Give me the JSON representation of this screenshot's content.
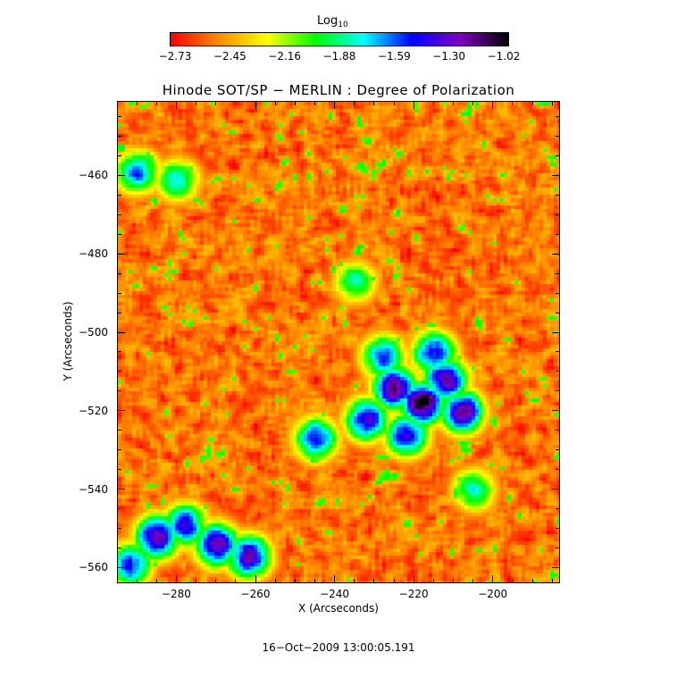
{
  "colorbar": {
    "title": "Log",
    "title_sub": "10",
    "ticks": [
      "−2.73",
      "−2.45",
      "−2.16",
      "−1.88",
      "−1.59",
      "−1.30",
      "−1.02"
    ],
    "colors": [
      "#ff0000",
      "#ff8c00",
      "#ffff00",
      "#00ff00",
      "#00ffff",
      "#0000ff",
      "#8000c0",
      "#000000"
    ]
  },
  "chart_data": {
    "type": "heatmap",
    "title": "Hinode SOT/SP − MERLIN : Degree of Polarization",
    "xlabel": "X (Arcseconds)",
    "ylabel": "Y (Arcseconds)",
    "xlim": [
      -295,
      -183
    ],
    "ylim": [
      -564,
      -441
    ],
    "xticks": [
      -280,
      -260,
      -240,
      -220,
      -200
    ],
    "xtick_labels": [
      "−280",
      "−260",
      "−240",
      "−220",
      "−200"
    ],
    "yticks": [
      -460,
      -480,
      -500,
      -520,
      -540,
      -560
    ],
    "ytick_labels": [
      "−460",
      "−480",
      "−500",
      "−520",
      "−540",
      "−560"
    ],
    "zlim": [
      -2.73,
      -1.02
    ],
    "z_scale": "log10",
    "features": [
      {
        "x": -218,
        "y": -518,
        "level": -1.05
      },
      {
        "x": -225,
        "y": -514,
        "level": -1.2
      },
      {
        "x": -212,
        "y": -512,
        "level": -1.25
      },
      {
        "x": -232,
        "y": -522,
        "level": -1.35
      },
      {
        "x": -208,
        "y": -520,
        "level": -1.25
      },
      {
        "x": -222,
        "y": -526,
        "level": -1.4
      },
      {
        "x": -245,
        "y": -527,
        "level": -1.5
      },
      {
        "x": -215,
        "y": -505,
        "level": -1.45
      },
      {
        "x": -228,
        "y": -506,
        "level": -1.55
      },
      {
        "x": -285,
        "y": -552,
        "level": -1.2
      },
      {
        "x": -270,
        "y": -554,
        "level": -1.25
      },
      {
        "x": -262,
        "y": -557,
        "level": -1.3
      },
      {
        "x": -278,
        "y": -549,
        "level": -1.45
      },
      {
        "x": -292,
        "y": -559,
        "level": -1.5
      },
      {
        "x": -290,
        "y": -459,
        "level": -1.6
      },
      {
        "x": -280,
        "y": -461,
        "level": -1.75
      },
      {
        "x": -235,
        "y": -487,
        "level": -1.85
      },
      {
        "x": -205,
        "y": -540,
        "level": -1.8
      }
    ]
  },
  "footer": {
    "timestamp": "16−Oct−2009 13:00:05.191"
  }
}
